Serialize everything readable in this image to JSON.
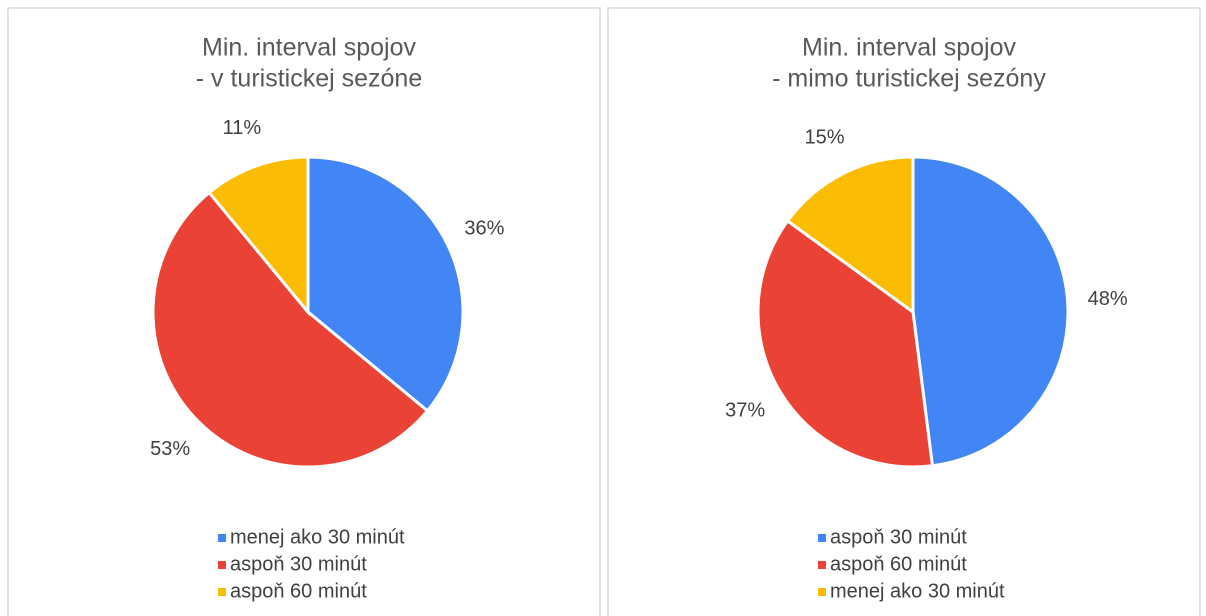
{
  "chart_data": [
    {
      "type": "pie",
      "title": [
        "Min. interval spojov",
        "- v turistickej sezóne"
      ],
      "categories": [
        "menej ako 30 minút",
        "aspoň 30 minút",
        "aspoň 60 minút"
      ],
      "values": [
        36,
        53,
        11
      ],
      "value_labels": [
        "36%",
        "53%",
        "11%"
      ],
      "colors": [
        "#4285f4",
        "#ea4335",
        "#fbbc04"
      ],
      "legend": "bottom"
    },
    {
      "type": "pie",
      "title": [
        "Min. interval spojov",
        "- mimo turistickej sezóny"
      ],
      "categories": [
        "aspoň 30 minút",
        "aspoň 60 minút",
        "menej ako 30 minút"
      ],
      "values": [
        48,
        37,
        15
      ],
      "value_labels": [
        "48%",
        "37%",
        "15%"
      ],
      "colors": [
        "#4285f4",
        "#ea4335",
        "#fbbc04"
      ],
      "legend": "bottom"
    }
  ]
}
